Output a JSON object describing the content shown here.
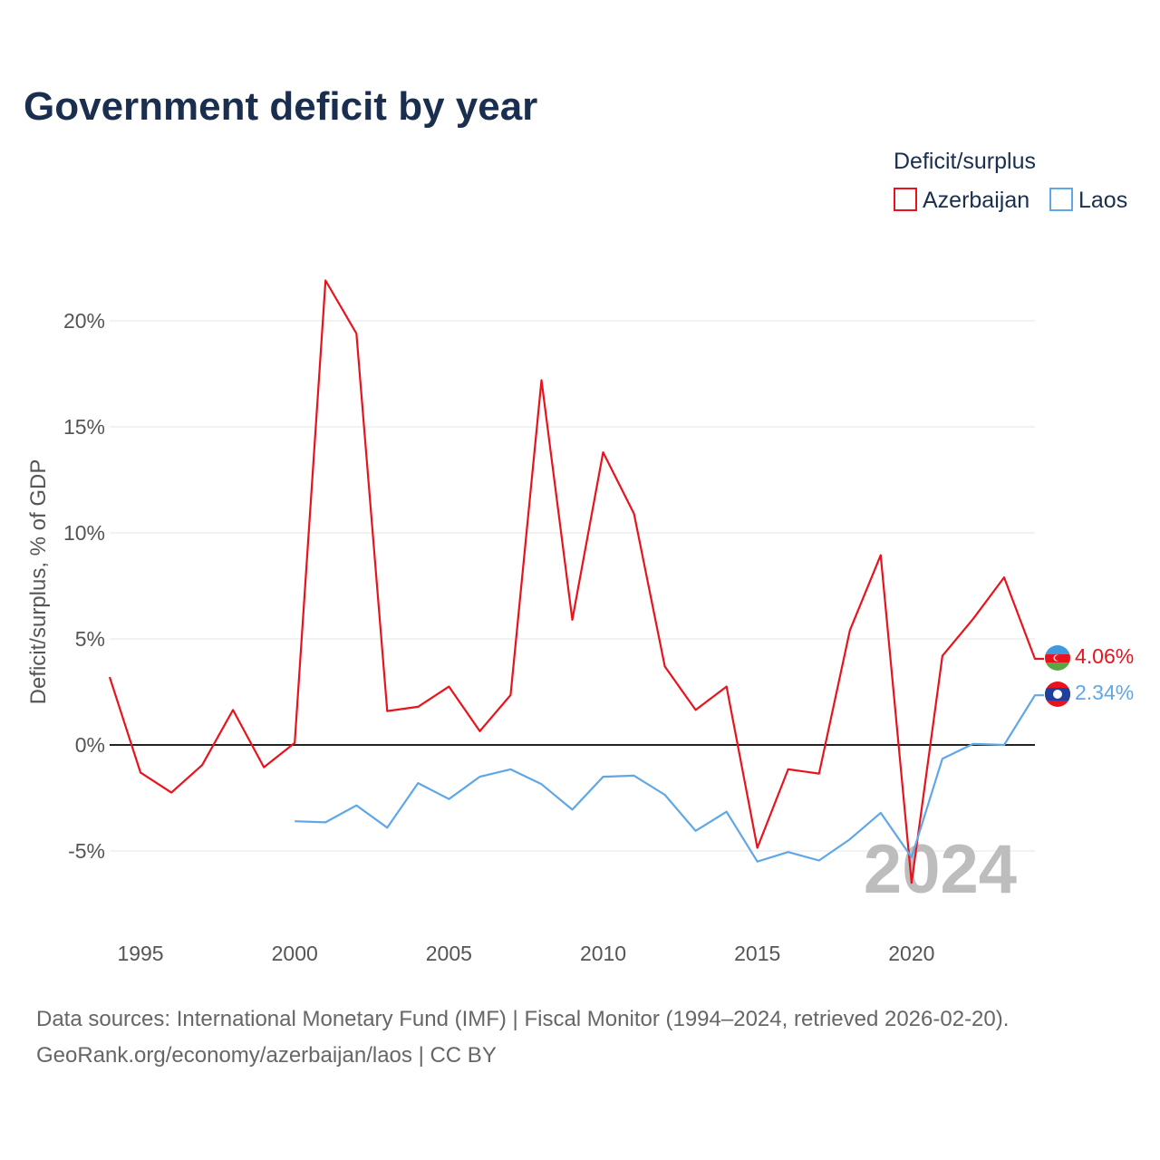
{
  "chart_data": {
    "type": "line",
    "title": "Government deficit by year",
    "ylabel": "Deficit/surplus, % of GDP",
    "xlabel": "",
    "xlim": [
      1994,
      2024
    ],
    "ylim": [
      -8,
      23
    ],
    "y_ticks": [
      20,
      15,
      10,
      5,
      0,
      -5
    ],
    "y_tick_labels": [
      "20%",
      "15%",
      "10%",
      "5%",
      "0%",
      "-5%"
    ],
    "x_ticks": [
      1995,
      2000,
      2005,
      2010,
      2015,
      2020
    ],
    "x_tick_labels": [
      "1995",
      "2000",
      "2005",
      "2010",
      "2015",
      "2020"
    ],
    "legend_title": "Deficit/surplus",
    "legend_position": "top-right",
    "year_watermark": "2024",
    "series": [
      {
        "name": "Azerbaijan",
        "color": "#e8131d",
        "flag": "azerbaijan-flag-icon",
        "end_label": "4.06%",
        "x": [
          1994,
          1995,
          1996,
          1997,
          1998,
          1999,
          2000,
          2001,
          2002,
          2003,
          2004,
          2005,
          2006,
          2007,
          2008,
          2009,
          2010,
          2011,
          2012,
          2013,
          2014,
          2015,
          2016,
          2017,
          2018,
          2019,
          2020,
          2021,
          2022,
          2023,
          2024
        ],
        "values": [
          3.2,
          -1.3,
          -2.25,
          -0.95,
          1.65,
          -1.05,
          0.1,
          21.9,
          19.4,
          1.6,
          1.8,
          2.75,
          0.65,
          2.35,
          17.2,
          5.9,
          13.8,
          10.9,
          3.7,
          1.65,
          2.75,
          -4.85,
          -1.15,
          -1.35,
          5.4,
          8.95,
          -6.5,
          4.2,
          5.95,
          7.9,
          4.06
        ]
      },
      {
        "name": "Laos",
        "color": "#5fa7e6",
        "flag": "laos-flag-icon",
        "end_label": "2.34%",
        "x": [
          2000,
          2001,
          2002,
          2003,
          2004,
          2005,
          2006,
          2007,
          2008,
          2009,
          2010,
          2011,
          2012,
          2013,
          2014,
          2015,
          2016,
          2017,
          2018,
          2019,
          2020,
          2021,
          2022,
          2023,
          2024
        ],
        "values": [
          -3.6,
          -3.65,
          -2.85,
          -3.9,
          -1.8,
          -2.55,
          -1.5,
          -1.15,
          -1.85,
          -3.05,
          -1.5,
          -1.45,
          -2.35,
          -4.05,
          -3.15,
          -5.5,
          -5.05,
          -5.45,
          -4.45,
          -3.2,
          -5.3,
          -0.65,
          0.05,
          0.0,
          2.34
        ]
      }
    ]
  },
  "footer": {
    "sources": "Data sources: International Monetary Fund (IMF) | Fiscal Monitor (1994–2024, retrieved 2026-02-20).",
    "credit": "GeoRank.org/economy/azerbaijan/laos | CC BY"
  }
}
